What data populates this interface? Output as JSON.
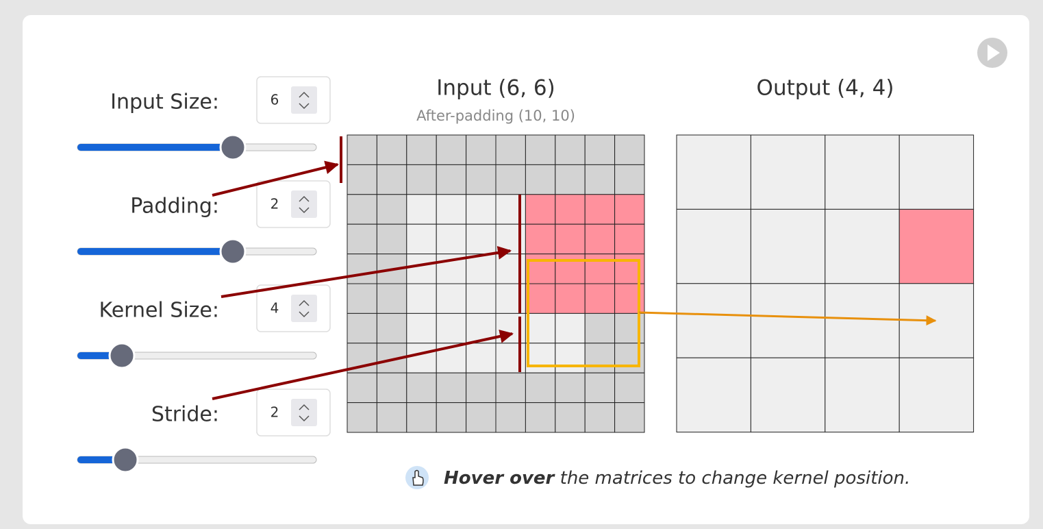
{
  "controls": [
    {
      "label": "Input Size:",
      "value": "6"
    },
    {
      "label": "Padding:",
      "value": "2"
    },
    {
      "label": "Kernel Size:",
      "value": "4"
    },
    {
      "label": "Stride:",
      "value": "2"
    }
  ],
  "input": {
    "title": "Input (6, 6)",
    "subtitle": "After-padding (10, 10)"
  },
  "output": {
    "title": "Output (4, 4)"
  },
  "hint": {
    "emphasis": "Hover over",
    "text": " the matrices to change kernel position."
  }
}
